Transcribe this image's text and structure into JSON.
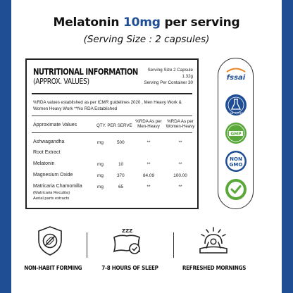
{
  "colors": {
    "brand_blue": "#1f4e94",
    "text": "#111111",
    "badge_green": "#5aa83a",
    "fssai_orange": "#e8852b"
  },
  "header": {
    "title_prefix": "Melatonin ",
    "title_dose": "10mg",
    "title_suffix": " per serving",
    "subtitle": "(Serving Size : 2 capsules)"
  },
  "panel": {
    "title": "NUTRITIONAL INFORMATION",
    "subtitle": "(APPROX. VALUES)",
    "serving_size": "Serving Size 2 Capsule",
    "serving_weight": "1.32g",
    "servings_per_container": "Serving Per Container 30",
    "note_line1": "%RDA values established as per ICMR guidelines 2020 , Men Heavy Work &",
    "note_line2": "Women Heavy Work **No RDA Established",
    "columns": {
      "name": "Approximate Values",
      "qty": "QTY. PER SERVE",
      "rda_men_1": "%RDA As per",
      "rda_men_2": "Men-Heavy",
      "rda_women_1": "%RDA As per",
      "rda_women_2": "Women-Heavy"
    },
    "rows": [
      {
        "name": "Ashwagandha",
        "unit": "mg",
        "qty": "500",
        "men": "**",
        "women": "**"
      },
      {
        "name": "Root Extract",
        "unit": "",
        "qty": "",
        "men": "",
        "women": ""
      },
      {
        "name": "Melatonin",
        "unit": "mg",
        "qty": "10",
        "men": "**",
        "women": "**"
      },
      {
        "name": "Magnesium Oxide",
        "unit": "mg",
        "qty": "370",
        "men": "84.09",
        "women": "100.00"
      },
      {
        "name": "Matricaria Chamomilla",
        "unit": "mg",
        "qty": "65",
        "men": "**",
        "women": "**"
      }
    ],
    "row_note_1": "(Matricaria Recutita)",
    "row_note_2": "Aerial parts extracts"
  },
  "badges": [
    {
      "icon": "fssai-logo",
      "text": "fssai"
    },
    {
      "icon": "lab-tested-seal",
      "text": "LAB TESTED"
    },
    {
      "icon": "gmp-certified-seal",
      "text": "GMP"
    },
    {
      "icon": "non-gmo-seal",
      "text_1": "NON",
      "text_2": "GMO"
    },
    {
      "icon": "vegetarian-check-icon"
    }
  ],
  "features": [
    {
      "icon": "no-habit-icon",
      "label": "NON-HABIT FORMING"
    },
    {
      "icon": "pillow-sleep-icon",
      "label": "7-8 HOURS OF SLEEP",
      "zzz": "ZZZ"
    },
    {
      "icon": "sunrise-wake-icon",
      "label": "REFRESHED MORNINGS"
    }
  ]
}
